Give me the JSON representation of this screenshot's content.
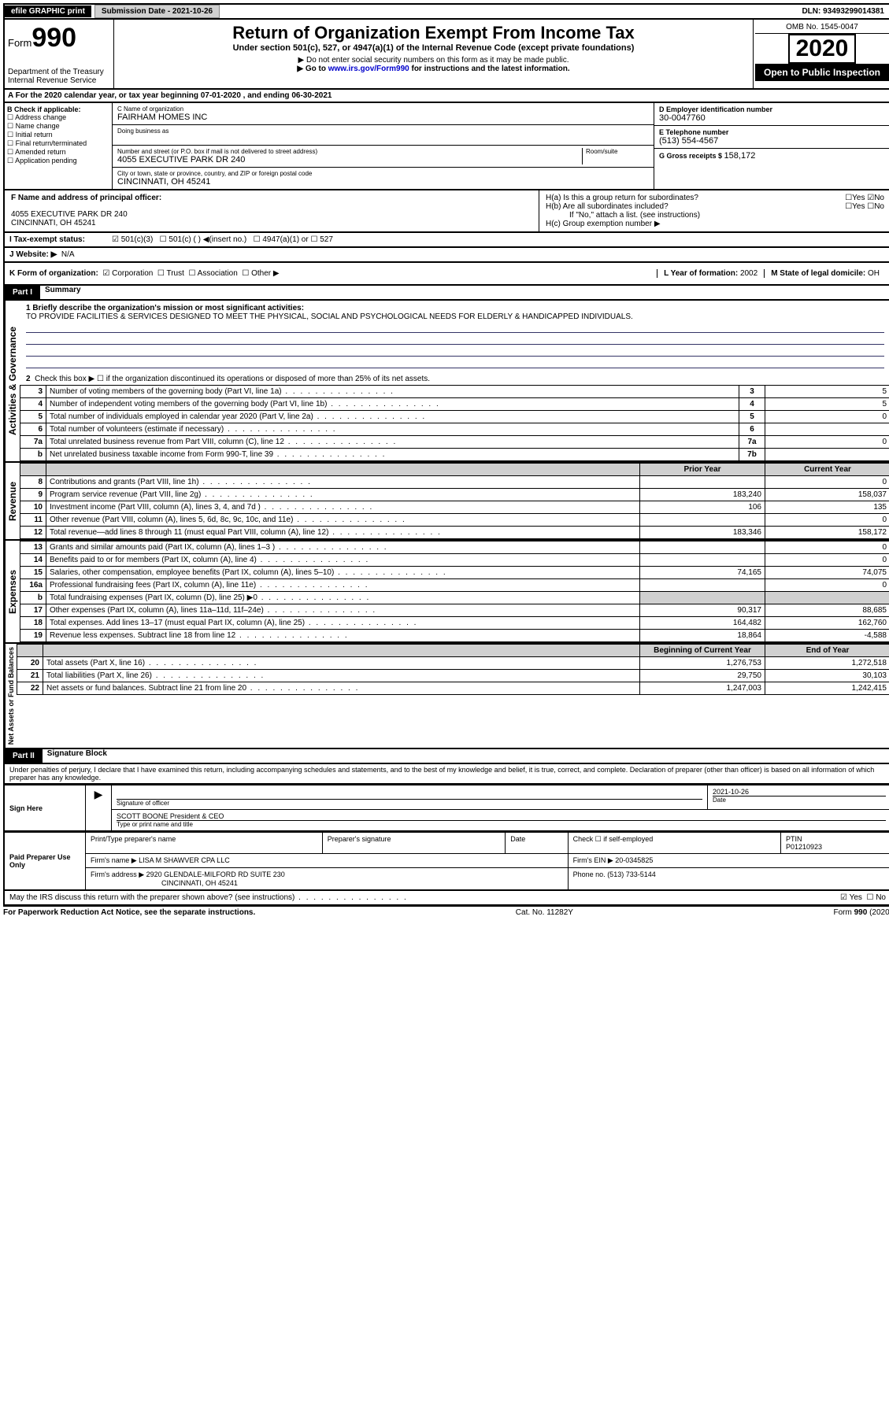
{
  "topbar": {
    "efile": "efile GRAPHIC print",
    "subdate_label": "Submission Date - ",
    "subdate": "2021-10-26",
    "dln_label": "DLN: ",
    "dln": "93493299014381"
  },
  "header": {
    "form_label": "Form",
    "form_num": "990",
    "dept1": "Department of the Treasury",
    "dept2": "Internal Revenue Service",
    "title": "Return of Organization Exempt From Income Tax",
    "sub1": "Under section 501(c), 527, or 4947(a)(1) of the Internal Revenue Code (except private foundations)",
    "sub2": "▶ Do not enter social security numbers on this form as it may be made public.",
    "sub3a": "▶ Go to ",
    "sub3link": "www.irs.gov/Form990",
    "sub3b": " for instructions and the latest information.",
    "omb": "OMB No. 1545-0047",
    "year": "2020",
    "open": "Open to Public Inspection"
  },
  "period": "A For the 2020 calendar year, or tax year beginning 07-01-2020    , and ending 06-30-2021",
  "box_b": {
    "label": "B Check if applicable:",
    "opts": [
      "Address change",
      "Name change",
      "Initial return",
      "Final return/terminated",
      "Amended return",
      "Application pending"
    ]
  },
  "box_c": {
    "name_label": "C Name of organization",
    "name": "FAIRHAM HOMES INC",
    "dba_label": "Doing business as",
    "addr_label": "Number and street (or P.O. box if mail is not delivered to street address)",
    "room_label": "Room/suite",
    "addr": "4055 EXECUTIVE PARK DR 240",
    "city_label": "City or town, state or province, country, and ZIP or foreign postal code",
    "city": "CINCINNATI, OH  45241"
  },
  "box_d": {
    "label": "D Employer identification number",
    "val": "30-0047760"
  },
  "box_e": {
    "label": "E Telephone number",
    "val": "(513) 554-4567"
  },
  "box_g": {
    "label": "G Gross receipts $ ",
    "val": "158,172"
  },
  "box_f": {
    "label": "F  Name and address of principal officer:",
    "addr1": "4055 EXECUTIVE PARK DR 240",
    "addr2": "CINCINNATI, OH  45241"
  },
  "box_h": {
    "a": "H(a)  Is this a group return for subordinates?",
    "b": "H(b)  Are all subordinates included?",
    "note": "If \"No,\" attach a list. (see instructions)",
    "c": "H(c)  Group exemption number ▶"
  },
  "box_i": {
    "label": "I  Tax-exempt status:",
    "o1": "501(c)(3)",
    "o2": "501(c) (  ) ◀(insert no.)",
    "o3": "4947(a)(1) or",
    "o4": "527"
  },
  "box_j": {
    "label": "J  Website: ▶",
    "val": "N/A"
  },
  "box_k": {
    "label": "K Form of organization:",
    "o1": "Corporation",
    "o2": "Trust",
    "o3": "Association",
    "o4": "Other ▶"
  },
  "box_l": {
    "label": "L Year of formation: ",
    "val": "2002"
  },
  "box_m": {
    "label": "M State of legal domicile: ",
    "val": "OH"
  },
  "part1": {
    "hdr": "Part I",
    "title": "Summary"
  },
  "mission": {
    "q": "1  Briefly describe the organization's mission or most significant activities:",
    "text": "TO PROVIDE FACILITIES & SERVICES DESIGNED TO MEET THE PHYSICAL, SOCIAL AND PSYCHOLOGICAL NEEDS FOR ELDERLY & HANDICAPPED INDIVIDUALS."
  },
  "line2": "Check this box ▶ ☐  if the organization discontinued its operations or disposed of more than 25% of its net assets.",
  "activities_rows": [
    {
      "n": "3",
      "t": "Number of voting members of the governing body (Part VI, line 1a)",
      "b": "3",
      "v": "5"
    },
    {
      "n": "4",
      "t": "Number of independent voting members of the governing body (Part VI, line 1b)",
      "b": "4",
      "v": "5"
    },
    {
      "n": "5",
      "t": "Total number of individuals employed in calendar year 2020 (Part V, line 2a)",
      "b": "5",
      "v": "0"
    },
    {
      "n": "6",
      "t": "Total number of volunteers (estimate if necessary)",
      "b": "6",
      "v": ""
    },
    {
      "n": "7a",
      "t": "Total unrelated business revenue from Part VIII, column (C), line 12",
      "b": "7a",
      "v": "0"
    },
    {
      "n": "b",
      "t": "Net unrelated business taxable income from Form 990-T, line 39",
      "b": "7b",
      "v": ""
    }
  ],
  "col_hdrs": {
    "py": "Prior Year",
    "cy": "Current Year"
  },
  "revenue_rows": [
    {
      "n": "8",
      "t": "Contributions and grants (Part VIII, line 1h)",
      "py": "",
      "cy": "0"
    },
    {
      "n": "9",
      "t": "Program service revenue (Part VIII, line 2g)",
      "py": "183,240",
      "cy": "158,037"
    },
    {
      "n": "10",
      "t": "Investment income (Part VIII, column (A), lines 3, 4, and 7d )",
      "py": "106",
      "cy": "135"
    },
    {
      "n": "11",
      "t": "Other revenue (Part VIII, column (A), lines 5, 6d, 8c, 9c, 10c, and 11e)",
      "py": "",
      "cy": "0"
    },
    {
      "n": "12",
      "t": "Total revenue—add lines 8 through 11 (must equal Part VIII, column (A), line 12)",
      "py": "183,346",
      "cy": "158,172"
    }
  ],
  "expense_rows": [
    {
      "n": "13",
      "t": "Grants and similar amounts paid (Part IX, column (A), lines 1–3 )",
      "py": "",
      "cy": "0"
    },
    {
      "n": "14",
      "t": "Benefits paid to or for members (Part IX, column (A), line 4)",
      "py": "",
      "cy": "0"
    },
    {
      "n": "15",
      "t": "Salaries, other compensation, employee benefits (Part IX, column (A), lines 5–10)",
      "py": "74,165",
      "cy": "74,075"
    },
    {
      "n": "16a",
      "t": "Professional fundraising fees (Part IX, column (A), line 11e)",
      "py": "",
      "cy": "0"
    },
    {
      "n": "b",
      "t": "Total fundraising expenses (Part IX, column (D), line 25) ▶0",
      "py": "shade",
      "cy": "shade"
    },
    {
      "n": "17",
      "t": "Other expenses (Part IX, column (A), lines 11a–11d, 11f–24e)",
      "py": "90,317",
      "cy": "88,685"
    },
    {
      "n": "18",
      "t": "Total expenses. Add lines 13–17 (must equal Part IX, column (A), line 25)",
      "py": "164,482",
      "cy": "162,760"
    },
    {
      "n": "19",
      "t": "Revenue less expenses. Subtract line 18 from line 12",
      "py": "18,864",
      "cy": "-4,588"
    }
  ],
  "na_hdrs": {
    "by": "Beginning of Current Year",
    "ey": "End of Year"
  },
  "netassets_rows": [
    {
      "n": "20",
      "t": "Total assets (Part X, line 16)",
      "py": "1,276,753",
      "cy": "1,272,518"
    },
    {
      "n": "21",
      "t": "Total liabilities (Part X, line 26)",
      "py": "29,750",
      "cy": "30,103"
    },
    {
      "n": "22",
      "t": "Net assets or fund balances. Subtract line 21 from line 20",
      "py": "1,247,003",
      "cy": "1,242,415"
    }
  ],
  "vlabels": {
    "ag": "Activities & Governance",
    "rev": "Revenue",
    "exp": "Expenses",
    "na": "Net Assets or Fund Balances"
  },
  "part2": {
    "hdr": "Part II",
    "title": "Signature Block"
  },
  "sig_decl": "Under penalties of perjury, I declare that I have examined this return, including accompanying schedules and statements, and to the best of my knowledge and belief, it is true, correct, and complete. Declaration of preparer (other than officer) is based on all information of which preparer has any knowledge.",
  "sign": {
    "here": "Sign Here",
    "sig_of": "Signature of officer",
    "date_lbl": "Date",
    "date": "2021-10-26",
    "name": "SCOTT BOONE  President & CEO",
    "type_lbl": "Type or print name and title"
  },
  "paid": {
    "here": "Paid Preparer Use Only",
    "c1": "Print/Type preparer's name",
    "c2": "Preparer's signature",
    "c3": "Date",
    "c4a": "Check ☐  if self-employed",
    "c5a": "PTIN",
    "c5b": "P01210923",
    "firm_lbl": "Firm's name    ▶ ",
    "firm": "LISA M SHAWVER CPA LLC",
    "ein_lbl": "Firm's EIN ▶ ",
    "ein": "20-0345825",
    "addr_lbl": "Firm's address ▶ ",
    "addr1": "2920 GLENDALE-MILFORD RD SUITE 230",
    "addr2": "CINCINNATI, OH  45241",
    "phone_lbl": "Phone no. ",
    "phone": "(513) 733-5144"
  },
  "discuss": "May the IRS discuss this return with the preparer shown above? (see instructions)",
  "footer": {
    "l": "For Paperwork Reduction Act Notice, see the separate instructions.",
    "m": "Cat. No. 11282Y",
    "r": "Form 990 (2020)"
  }
}
